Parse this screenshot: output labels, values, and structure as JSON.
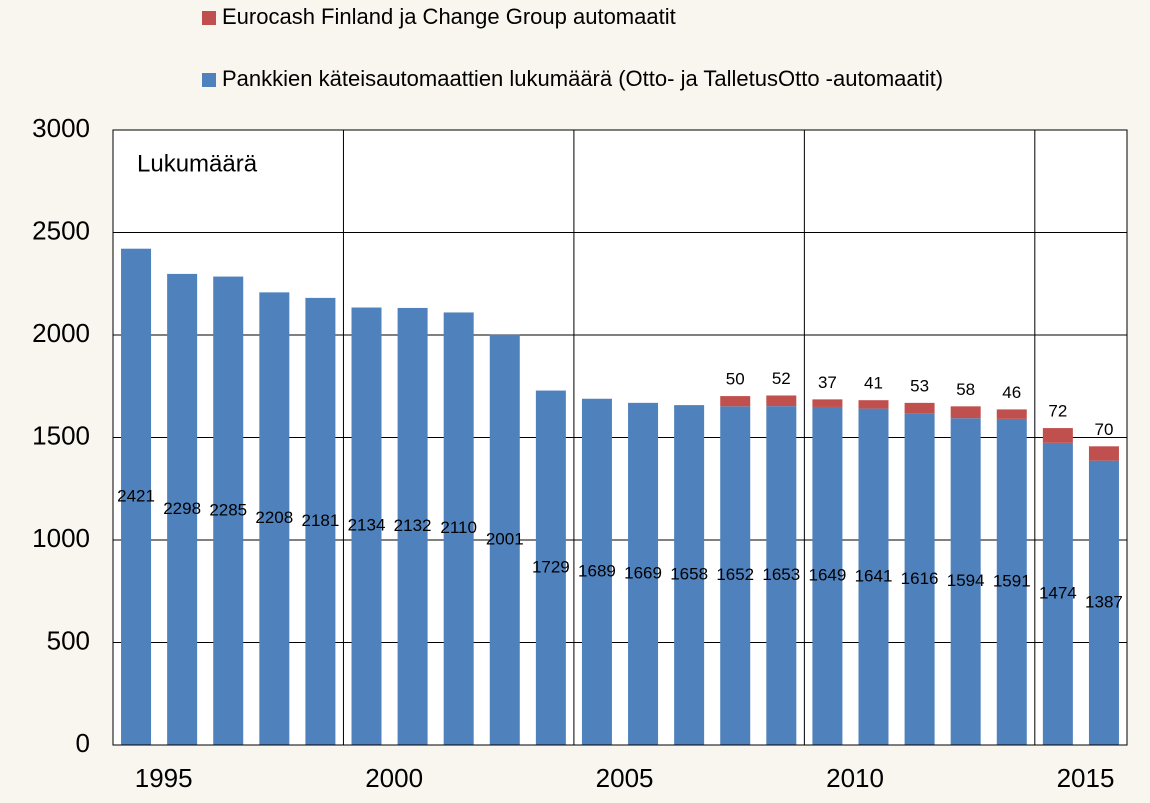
{
  "chart_data": {
    "type": "stacked_bar",
    "annotation": "Lukumäärä",
    "categories": [
      "1995",
      null,
      null,
      null,
      null,
      "2000",
      null,
      null,
      null,
      null,
      "2005",
      null,
      null,
      null,
      null,
      "2010",
      null,
      null,
      null,
      null,
      "2015",
      null
    ],
    "series": [
      {
        "name": "Pankkien käteisautomaattien lukumäärä (Otto- ja TalletusOtto -automaatit)",
        "color": "#4f81bd",
        "values": [
          2421,
          2298,
          2285,
          2208,
          2181,
          2134,
          2132,
          2110,
          2001,
          1729,
          1689,
          1669,
          1658,
          1652,
          1653,
          1649,
          1641,
          1616,
          1594,
          1591,
          1474,
          1387
        ]
      },
      {
        "name": "Eurocash Finland ja Change Group automaatit",
        "color": "#c0504d",
        "values": [
          null,
          null,
          null,
          null,
          null,
          null,
          null,
          null,
          null,
          null,
          null,
          null,
          null,
          50,
          52,
          37,
          41,
          53,
          58,
          46,
          72,
          70
        ]
      }
    ],
    "ylim": [
      0,
      3000
    ],
    "yticks": [
      0,
      500,
      1000,
      1500,
      2000,
      2500,
      3000
    ],
    "grid": true
  }
}
